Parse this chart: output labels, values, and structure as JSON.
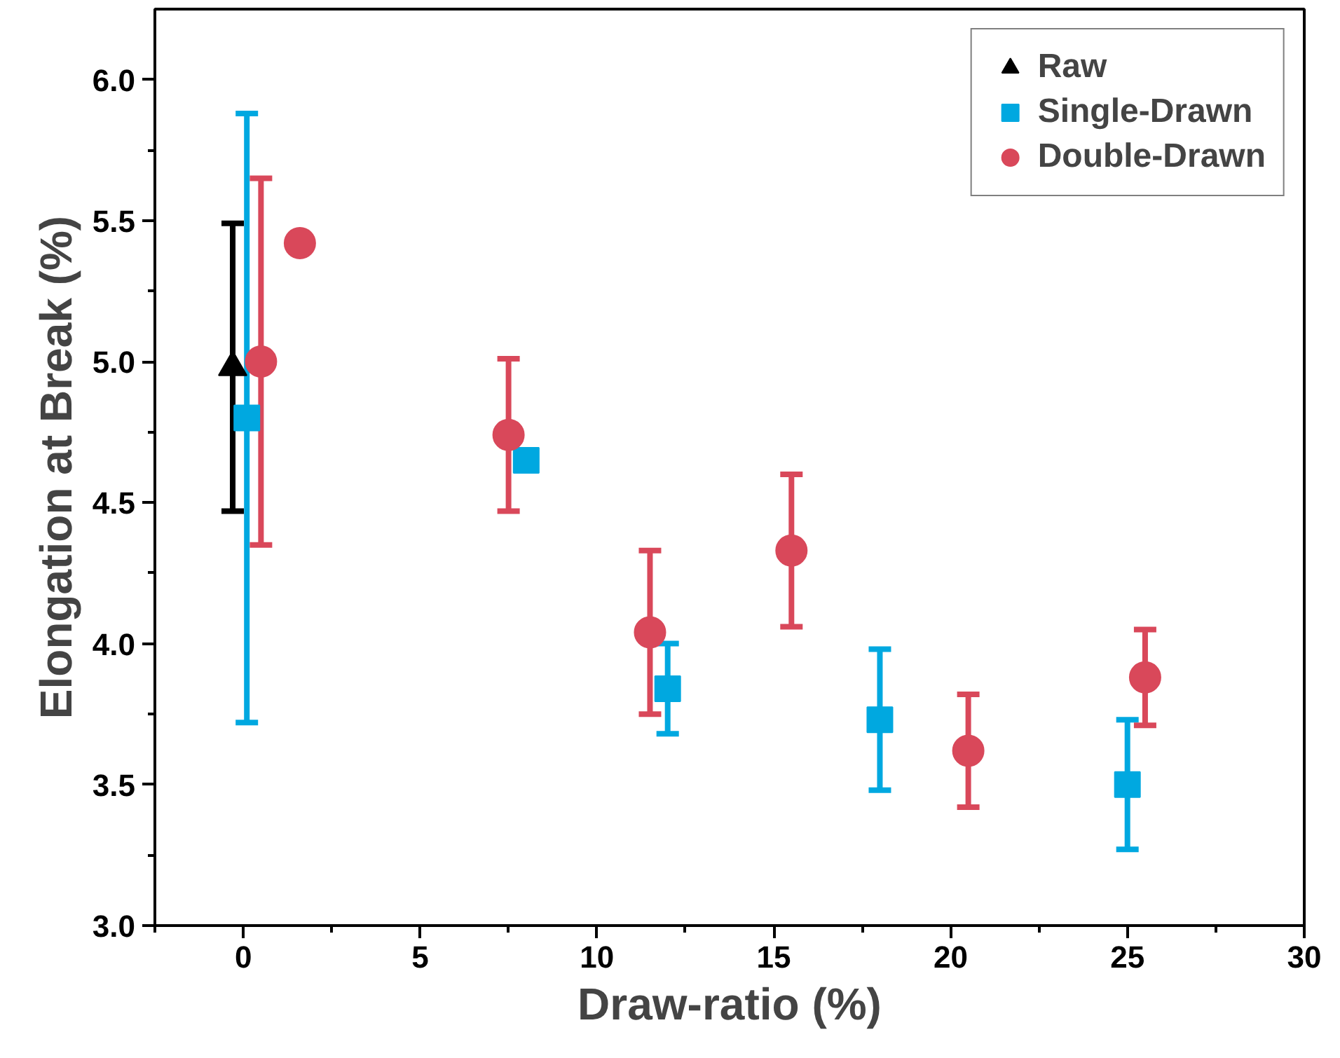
{
  "chart_data": {
    "type": "scatter",
    "xlabel": "Draw-ratio (%)",
    "ylabel": "Elongation at Break (%)",
    "xlim": [
      -2.5,
      30
    ],
    "ylim": [
      3.0,
      6.25
    ],
    "xticks": [
      {
        "value": -2.5,
        "label": null
      },
      0,
      {
        "value": 2.5,
        "label": null
      },
      5,
      {
        "value": 7.5,
        "label": null
      },
      10,
      {
        "value": 12.5,
        "label": null
      },
      15,
      {
        "value": 17.5,
        "label": null
      },
      20,
      {
        "value": 22.5,
        "label": null
      },
      25,
      {
        "value": 27.5,
        "label": null
      },
      30
    ],
    "yticks": [
      {
        "value": 3.0,
        "label": "3.0"
      },
      {
        "value": 3.25,
        "label": null
      },
      {
        "value": 3.5,
        "label": "3.5"
      },
      {
        "value": 3.75,
        "label": null
      },
      {
        "value": 4.0,
        "label": "4.0"
      },
      {
        "value": 4.25,
        "label": null
      },
      {
        "value": 4.5,
        "label": "4.5"
      },
      {
        "value": 4.75,
        "label": null
      },
      {
        "value": 5.0,
        "label": "5.0"
      },
      {
        "value": 5.25,
        "label": null
      },
      {
        "value": 5.5,
        "label": "5.5"
      },
      {
        "value": 5.75,
        "label": null
      },
      {
        "value": 6.0,
        "label": "6.0"
      }
    ],
    "grid": false,
    "legend": "top right",
    "series": [
      {
        "name": "Raw",
        "color": "#000000",
        "marker": "triangle",
        "x": [
          -0.3
        ],
        "values": [
          4.98
        ],
        "errors": [
          0.51
        ]
      },
      {
        "name": "Single-Drawn",
        "color": "#00a8e0",
        "marker": "square",
        "x": [
          0.1,
          8,
          12,
          18,
          25
        ],
        "values": [
          4.8,
          4.65,
          3.84,
          3.73,
          3.5
        ],
        "errors": [
          1.08,
          null,
          0.16,
          0.25,
          0.23
        ]
      },
      {
        "name": "Double-Drawn",
        "color": "#d9485a",
        "marker": "circle",
        "x": [
          0.5,
          1.6,
          7.5,
          11.5,
          15.5,
          20.5,
          25.5
        ],
        "values": [
          5.0,
          5.42,
          4.74,
          4.04,
          4.33,
          3.62,
          3.88
        ],
        "errors": [
          0.65,
          null,
          0.27,
          0.29,
          0.27,
          0.2,
          0.17
        ]
      }
    ]
  }
}
